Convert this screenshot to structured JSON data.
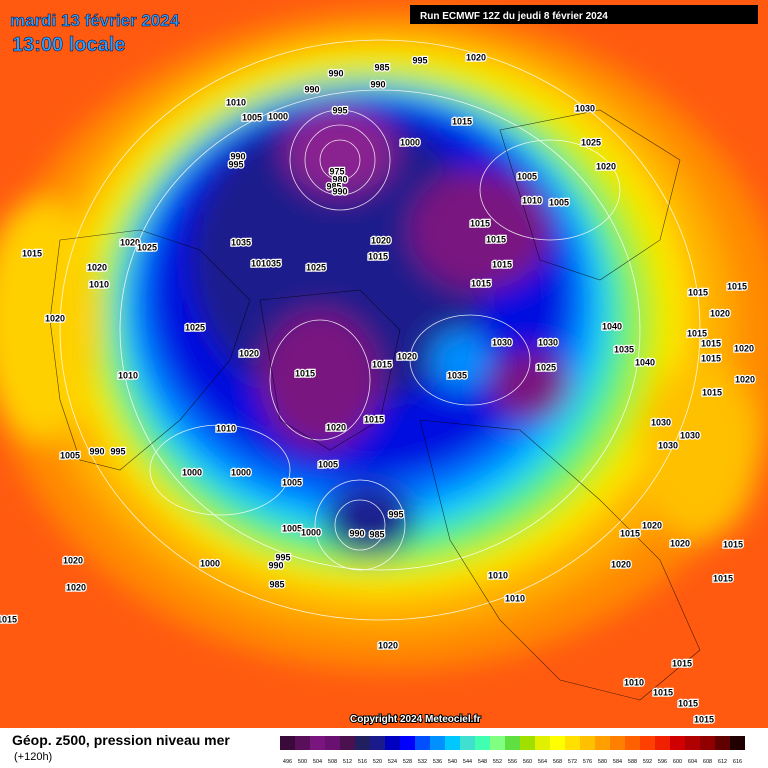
{
  "header": {
    "date": "mardi 13 février 2024",
    "time": "13:00 locale",
    "run": "Run ECMWF 12Z du jeudi 8 février 2024",
    "copyright": "Copyright 2024 Meteociel.fr"
  },
  "footer": {
    "title": "Géop. z500, pression niveau mer",
    "lead": "(+120h)"
  },
  "isobar_labels": [
    985,
    995,
    1020,
    990,
    990,
    990,
    1010,
    1005,
    1000,
    995,
    1015,
    1030,
    1000,
    1025,
    1020,
    990,
    995,
    975,
    980,
    985,
    990,
    1005,
    1010,
    1005,
    1015,
    1020,
    1025,
    1035,
    1020,
    1015,
    1015,
    1015,
    1015,
    101035,
    1025,
    1020,
    1010,
    1015,
    1015,
    1015,
    1020,
    1025,
    1040,
    1020,
    1015,
    1015,
    1030,
    1030,
    1020,
    1035,
    1040,
    1020,
    1020,
    1015,
    1015,
    1025,
    1035,
    1010,
    1015,
    1020,
    1015,
    1015,
    1020,
    1010,
    1030,
    1030,
    1030,
    1005,
    990,
    995,
    1005,
    1000,
    1000,
    1005,
    995,
    1005,
    1000,
    990,
    985,
    1020,
    1015,
    1020,
    1015,
    1020,
    1000,
    995,
    990,
    985,
    1020,
    1020,
    1015,
    1010,
    1010,
    1015,
    1020,
    1015,
    1010,
    1015,
    1015,
    1015
  ],
  "scale": {
    "values": [
      496,
      500,
      504,
      508,
      512,
      516,
      520,
      524,
      528,
      532,
      536,
      540,
      544,
      548,
      552,
      556,
      560,
      564,
      568,
      572,
      576,
      580,
      584,
      588,
      592,
      596,
      600,
      604,
      608,
      612,
      616
    ],
    "colors": [
      "#3a0a3a",
      "#5a0f5a",
      "#7a1580",
      "#6a1070",
      "#4a1050",
      "#202060",
      "#1a1a8c",
      "#0000c0",
      "#0000ff",
      "#0050ff",
      "#0090ff",
      "#00c8ff",
      "#40e0d0",
      "#40ffb0",
      "#80ff80",
      "#60e040",
      "#a0e000",
      "#e0f000",
      "#ffff00",
      "#ffe000",
      "#ffc000",
      "#ffa000",
      "#ff8000",
      "#ff6000",
      "#ff4000",
      "#f02000",
      "#d00000",
      "#b00000",
      "#900000",
      "#600000",
      "#200000"
    ]
  }
}
